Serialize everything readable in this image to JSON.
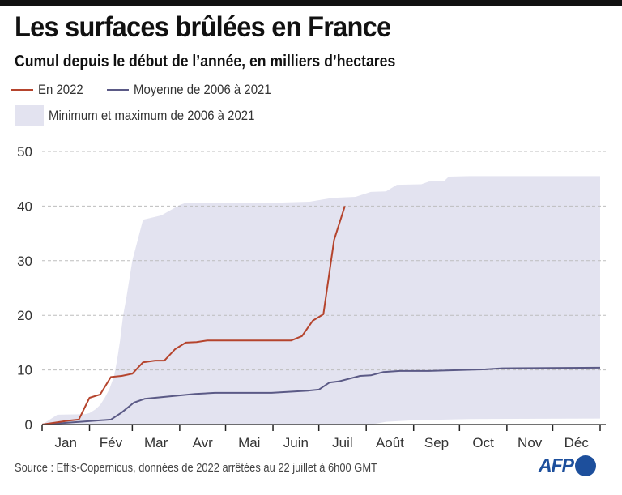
{
  "header": {
    "title": "Les surfaces brûlées en France",
    "subtitle": "Cumul depuis le début de l’année, en milliers d’hectares"
  },
  "legend": {
    "series_2022": "En 2022",
    "series_mean": "Moyenne de 2006 à 2021",
    "band": "Minimum et maximum de 2006 à 2021"
  },
  "colors": {
    "series_2022": "#b5442d",
    "series_mean": "#5b5a86",
    "band": "#e3e3f0",
    "grid": "#bdbdbd",
    "axis": "#444444",
    "logo": "#1d4f9c"
  },
  "footer": {
    "source": "Source : Effis-Copernicus, données de 2022 arrêtées au 22 juillet à 6h00 GMT",
    "logo_text": "AFP"
  },
  "chart_data": {
    "type": "line",
    "title": "Les surfaces brûlées en France",
    "subtitle": "Cumul depuis le début de l’année, en milliers d’hectares",
    "xlabel": "",
    "ylabel": "Milliers d'hectares",
    "x_unit": "day of year",
    "xlim": [
      0,
      365
    ],
    "ylim": [
      0,
      50
    ],
    "yticks": [
      0,
      10,
      20,
      30,
      40,
      50
    ],
    "grid": true,
    "legend_position": "top-left",
    "month_labels": [
      "Jan",
      "Fév",
      "Mar",
      "Avr",
      "Mai",
      "Juin",
      "Juil",
      "Août",
      "Sep",
      "Oct",
      "Nov",
      "Déc"
    ],
    "month_starts": [
      0,
      31,
      59,
      90,
      120,
      151,
      181,
      212,
      243,
      273,
      304,
      334,
      365
    ],
    "band": {
      "name": "Minimum et maximum de 2006 à 2021",
      "upper": [
        [
          0,
          0
        ],
        [
          10,
          1.8
        ],
        [
          28,
          1.9
        ],
        [
          31,
          2.1
        ],
        [
          35,
          2.8
        ],
        [
          38,
          3.6
        ],
        [
          41,
          4.9
        ],
        [
          44,
          6.5
        ],
        [
          47,
          8.8
        ],
        [
          49,
          11.7
        ],
        [
          51,
          15.4
        ],
        [
          53,
          20
        ],
        [
          55,
          23
        ],
        [
          59,
          30
        ],
        [
          66,
          37.5
        ],
        [
          78,
          38.3
        ],
        [
          90,
          40.2
        ],
        [
          93,
          40.5
        ],
        [
          120,
          40.6
        ],
        [
          150,
          40.6
        ],
        [
          175,
          40.8
        ],
        [
          190,
          41.5
        ],
        [
          205,
          41.7
        ],
        [
          215,
          42.6
        ],
        [
          225,
          42.7
        ],
        [
          232,
          43.9
        ],
        [
          248,
          44.0
        ],
        [
          253,
          44.5
        ],
        [
          263,
          44.6
        ],
        [
          266,
          45.4
        ],
        [
          280,
          45.5
        ],
        [
          365,
          45.5
        ]
      ],
      "lower": [
        [
          0,
          0
        ],
        [
          215,
          0
        ],
        [
          225,
          0.5
        ],
        [
          245,
          0.8
        ],
        [
          280,
          1.0
        ],
        [
          365,
          1.1
        ]
      ]
    },
    "series": [
      {
        "name": "En 2022",
        "points": [
          [
            0,
            0
          ],
          [
            17,
            0.7
          ],
          [
            24,
            0.9
          ],
          [
            31,
            4.9
          ],
          [
            38,
            5.5
          ],
          [
            45,
            8.7
          ],
          [
            52,
            8.9
          ],
          [
            59,
            9.3
          ],
          [
            66,
            11.4
          ],
          [
            74,
            11.7
          ],
          [
            80,
            11.7
          ],
          [
            87,
            13.8
          ],
          [
            94,
            15.0
          ],
          [
            101,
            15.1
          ],
          [
            108,
            15.4
          ],
          [
            130,
            15.4
          ],
          [
            163,
            15.4
          ],
          [
            170,
            16.2
          ],
          [
            177,
            19.0
          ],
          [
            184,
            20.2
          ],
          [
            191,
            33.8
          ],
          [
            198,
            40.0
          ]
        ]
      },
      {
        "name": "Moyenne de 2006 à 2021",
        "points": [
          [
            0,
            0
          ],
          [
            25,
            0.5
          ],
          [
            45,
            0.9
          ],
          [
            52,
            2.2
          ],
          [
            60,
            4.0
          ],
          [
            67,
            4.7
          ],
          [
            78,
            5.0
          ],
          [
            89,
            5.3
          ],
          [
            100,
            5.6
          ],
          [
            113,
            5.8
          ],
          [
            150,
            5.8
          ],
          [
            174,
            6.2
          ],
          [
            181,
            6.4
          ],
          [
            188,
            7.7
          ],
          [
            194,
            7.9
          ],
          [
            208,
            8.9
          ],
          [
            215,
            9.0
          ],
          [
            223,
            9.6
          ],
          [
            234,
            9.8
          ],
          [
            253,
            9.8
          ],
          [
            290,
            10.1
          ],
          [
            301,
            10.3
          ],
          [
            365,
            10.4
          ]
        ]
      }
    ]
  }
}
